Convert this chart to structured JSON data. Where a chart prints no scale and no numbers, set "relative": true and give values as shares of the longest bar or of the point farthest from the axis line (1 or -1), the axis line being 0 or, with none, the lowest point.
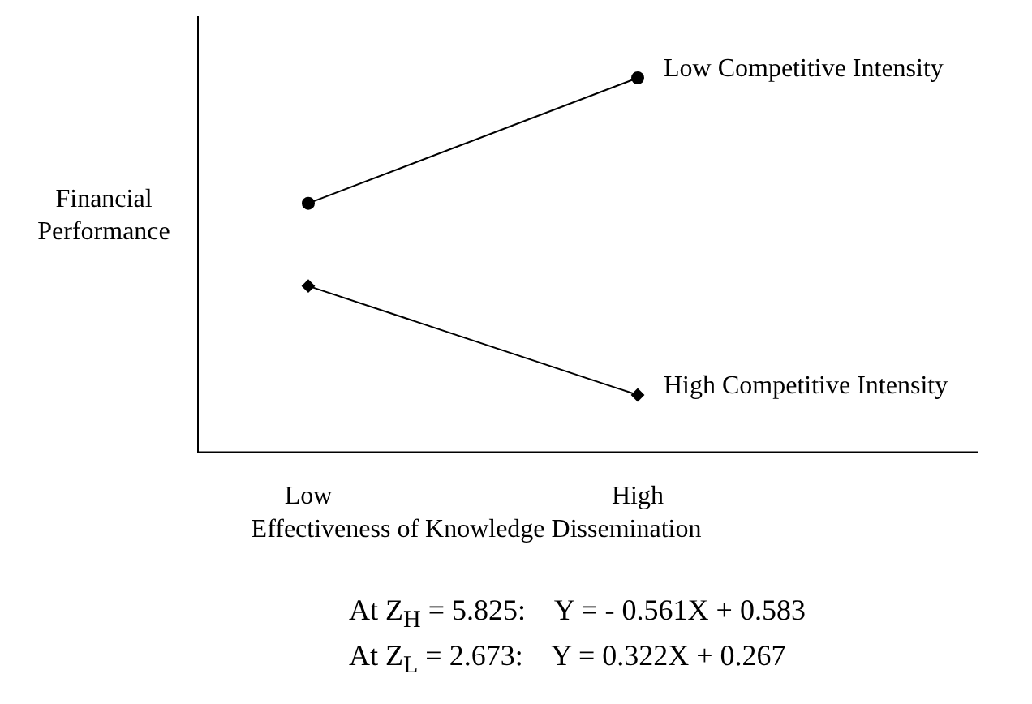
{
  "chart_data": {
    "type": "line",
    "relative": true,
    "categories": [
      "Low",
      "High"
    ],
    "xlabel": "Effectiveness of Knowledge Dissemination",
    "ylabel": "Financial Performance",
    "legend": false,
    "grid": false,
    "series": [
      {
        "name": "Low Competitive Intensity",
        "color": "#000000",
        "marker": "circle",
        "values": [
          0.665,
          1
        ]
      },
      {
        "name": "High Competitive Intensity",
        "color": "#000000",
        "marker": "diamond",
        "values": [
          0.444,
          0.153
        ]
      }
    ],
    "annotations": [
      "At Z$_{H}$ = 5.825:    Y = - 0.561X + 0.583",
      "At Z$_{L}$ = 2.673:    Y = 0.322X + 0.267"
    ]
  }
}
